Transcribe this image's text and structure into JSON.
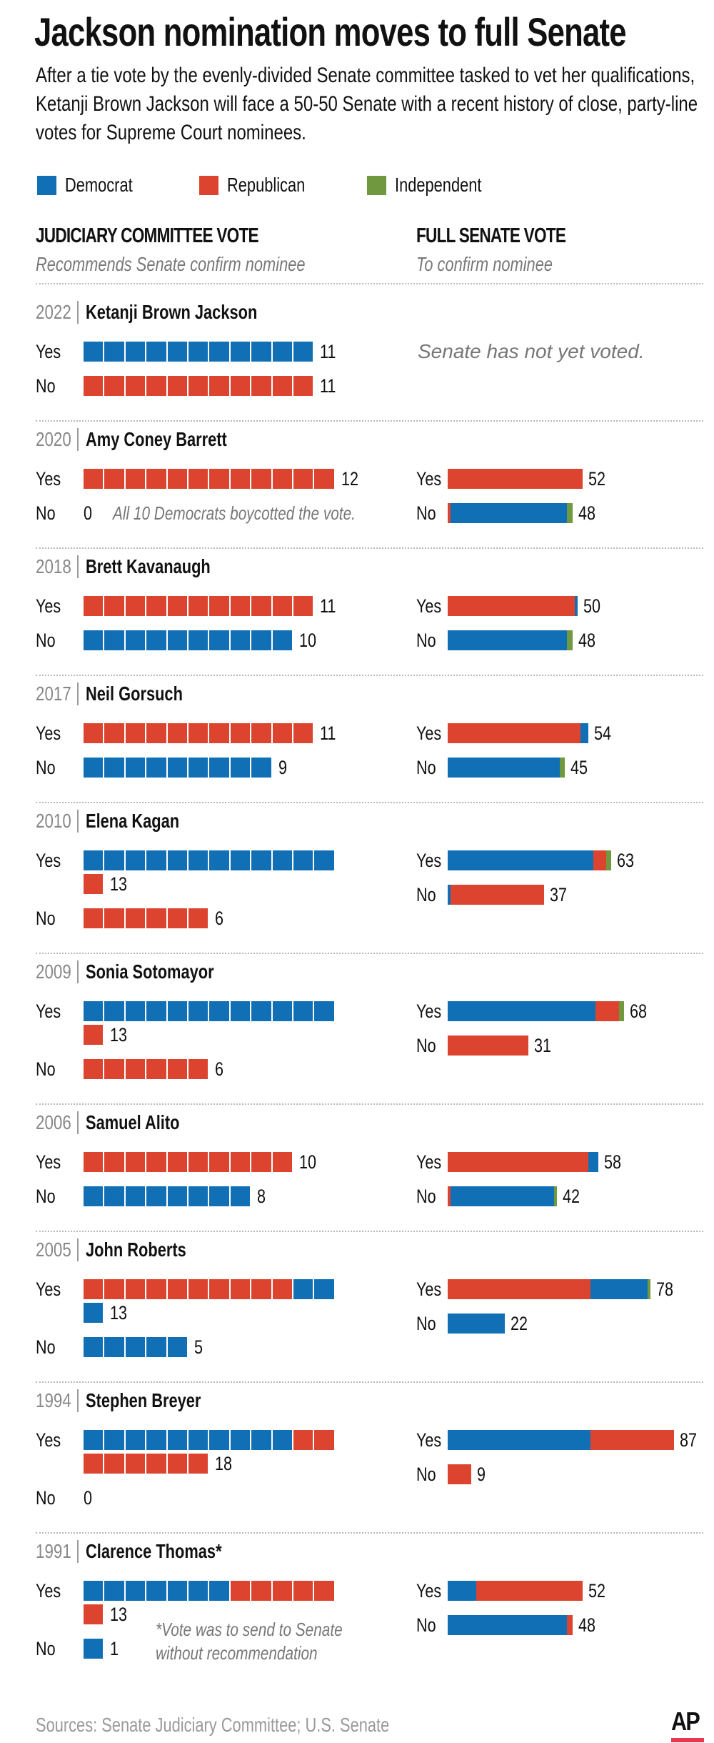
{
  "colors": {
    "democrat": "#1170b5",
    "republican": "#dc4430",
    "independent": "#70983f"
  },
  "header": {
    "title": "Jackson nomination moves to full Senate",
    "subtitle": "After a tie vote by the evenly-divided Senate committee tasked to vet her qualifications, Ketanji Brown Jackson will face a 50-50 Senate with a recent history of close, party-line votes for Supreme Court nominees."
  },
  "legend": [
    {
      "label": "Democrat",
      "party": "democrat"
    },
    {
      "label": "Republican",
      "party": "republican"
    },
    {
      "label": "Independent",
      "party": "independent"
    }
  ],
  "columns": {
    "committee": {
      "title": "JUDICIARY COMMITTEE VOTE",
      "subtitle": "Recommends Senate confirm nominee"
    },
    "senate": {
      "title": "FULL SENATE VOTE",
      "subtitle": "To confirm nominee"
    }
  },
  "labels": {
    "yes": "Yes",
    "no": "No"
  },
  "chart_data": {
    "type": "bar",
    "title": "Jackson nomination moves to full Senate",
    "nominees": [
      {
        "year": "2022",
        "name": "Ketanji Brown Jackson",
        "committee": {
          "yes": {
            "total": 11,
            "democrat": 11,
            "republican": 0
          },
          "no": {
            "total": 11,
            "democrat": 0,
            "republican": 11
          }
        },
        "senate": null,
        "senate_note": "Senate has not yet voted."
      },
      {
        "year": "2020",
        "name": "Amy Coney Barrett",
        "committee": {
          "yes": {
            "total": 12,
            "democrat": 0,
            "republican": 12
          },
          "no": {
            "total": 0,
            "democrat": 0,
            "republican": 0
          },
          "no_note": "All 10 Democrats boycotted the vote."
        },
        "senate": {
          "yes": {
            "total": 52,
            "republican": 52
          },
          "no": {
            "total": 48,
            "republican": 1,
            "democrat": 45,
            "independent": 2
          }
        }
      },
      {
        "year": "2018",
        "name": "Brett Kavanaugh",
        "committee": {
          "yes": {
            "total": 11,
            "republican": 11
          },
          "no": {
            "total": 10,
            "democrat": 10
          }
        },
        "senate": {
          "yes": {
            "total": 50,
            "republican": 49,
            "democrat": 1
          },
          "no": {
            "total": 48,
            "democrat": 46,
            "independent": 2
          }
        }
      },
      {
        "year": "2017",
        "name": "Neil Gorsuch",
        "committee": {
          "yes": {
            "total": 11,
            "republican": 11
          },
          "no": {
            "total": 9,
            "democrat": 9
          }
        },
        "senate": {
          "yes": {
            "total": 54,
            "republican": 51,
            "democrat": 3
          },
          "no": {
            "total": 45,
            "democrat": 43,
            "independent": 2
          }
        }
      },
      {
        "year": "2010",
        "name": "Elena Kagan",
        "committee": {
          "yes": {
            "total": 13,
            "democrat": 12,
            "republican": 1
          },
          "no": {
            "total": 6,
            "republican": 6
          }
        },
        "senate": {
          "yes": {
            "total": 63,
            "democrat": 56,
            "republican": 5,
            "independent": 2
          },
          "no": {
            "total": 37,
            "democrat": 1,
            "republican": 36
          }
        }
      },
      {
        "year": "2009",
        "name": "Sonia Sotomayor",
        "committee": {
          "yes": {
            "total": 13,
            "democrat": 12,
            "republican": 1
          },
          "no": {
            "total": 6,
            "republican": 6
          }
        },
        "senate": {
          "yes": {
            "total": 68,
            "democrat": 57,
            "republican": 9,
            "independent": 2
          },
          "no": {
            "total": 31,
            "republican": 31
          }
        }
      },
      {
        "year": "2006",
        "name": "Samuel Alito",
        "committee": {
          "yes": {
            "total": 10,
            "republican": 10
          },
          "no": {
            "total": 8,
            "democrat": 8
          }
        },
        "senate": {
          "yes": {
            "total": 58,
            "republican": 54,
            "democrat": 4
          },
          "no": {
            "total": 42,
            "republican": 1,
            "democrat": 40,
            "independent": 1
          }
        }
      },
      {
        "year": "2005",
        "name": "John Roberts",
        "committee": {
          "yes": {
            "total": 13,
            "republican": 10,
            "democrat": 3
          },
          "no": {
            "total": 5,
            "democrat": 5
          }
        },
        "senate": {
          "yes": {
            "total": 78,
            "republican": 55,
            "democrat": 22,
            "independent": 1
          },
          "no": {
            "total": 22,
            "democrat": 22
          }
        }
      },
      {
        "year": "1994",
        "name": "Stephen Breyer",
        "committee": {
          "yes": {
            "total": 18,
            "democrat": 10,
            "republican": 8
          },
          "no": {
            "total": 0
          }
        },
        "senate": {
          "yes": {
            "total": 87,
            "democrat": 55,
            "republican": 32
          },
          "no": {
            "total": 9,
            "republican": 9
          }
        }
      },
      {
        "year": "1991",
        "name": "Clarence Thomas*",
        "committee": {
          "yes": {
            "total": 13,
            "democrat": 7,
            "republican": 6
          },
          "no": {
            "total": 1,
            "democrat": 1
          }
        },
        "senate": {
          "yes": {
            "total": 52,
            "democrat": 11,
            "republican": 41
          },
          "no": {
            "total": 48,
            "democrat": 46,
            "republican": 2
          }
        },
        "footnote": [
          "*Vote was to send to Senate",
          "without recommendation"
        ]
      }
    ]
  },
  "footer": {
    "source": "Sources: Senate Judiciary Committee; U.S. Senate",
    "logo": "AP"
  }
}
